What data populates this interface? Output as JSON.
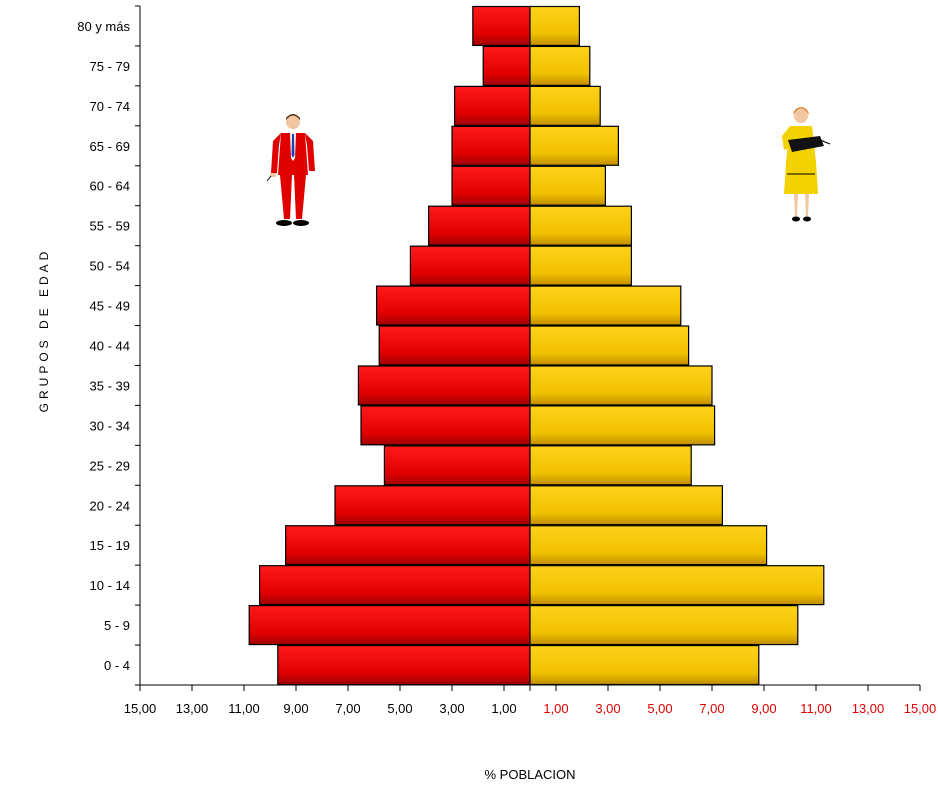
{
  "chart_data": {
    "type": "bar",
    "orientation": "horizontal-population-pyramid",
    "categories": [
      "0 - 4",
      "5 - 9",
      "10 - 14",
      "15 - 19",
      "20 - 24",
      "25 - 29",
      "30 - 34",
      "35 - 39",
      "40 - 44",
      "45 - 49",
      "50 - 54",
      "55 - 59",
      "60 - 64",
      "65 - 69",
      "70 - 74",
      "75 - 79",
      "80 y más"
    ],
    "series": [
      {
        "values": [
          9.7,
          10.8,
          10.4,
          9.4,
          7.5,
          5.6,
          6.5,
          6.6,
          5.8,
          5.9,
          4.6,
          3.9,
          3.0,
          3.0,
          2.9,
          1.8,
          2.2
        ],
        "color": "#e00000",
        "side": "left"
      },
      {
        "values": [
          8.8,
          10.3,
          11.3,
          9.1,
          7.4,
          6.2,
          7.1,
          7.0,
          6.1,
          5.8,
          3.9,
          3.9,
          2.9,
          3.4,
          2.7,
          2.3,
          1.9
        ],
        "color": "#f2c200",
        "side": "right"
      }
    ],
    "xlim": [
      -15,
      15
    ],
    "x_ticks_left": [
      "15,00",
      "13,00",
      "11,00",
      "9,00",
      "7,00",
      "5,00",
      "3,00",
      "1,00"
    ],
    "x_ticks_right": [
      "1,00",
      "3,00",
      "5,00",
      "7,00",
      "9,00",
      "11,00",
      "13,00",
      "15,00"
    ],
    "x_tick_values_left": [
      -15,
      -13,
      -11,
      -9,
      -7,
      -5,
      -3,
      -1
    ],
    "x_tick_values_right": [
      1,
      3,
      5,
      7,
      9,
      11,
      13,
      15
    ],
    "xlabel": "% POBLACION",
    "ylabel": "GRUPOS DE EDAD",
    "right_tick_color": "#e00000",
    "grid": false,
    "legend": "none"
  },
  "illustrations": {
    "male_figure": "man-in-red-suit-icon",
    "female_figure": "woman-in-yellow-suit-icon"
  }
}
